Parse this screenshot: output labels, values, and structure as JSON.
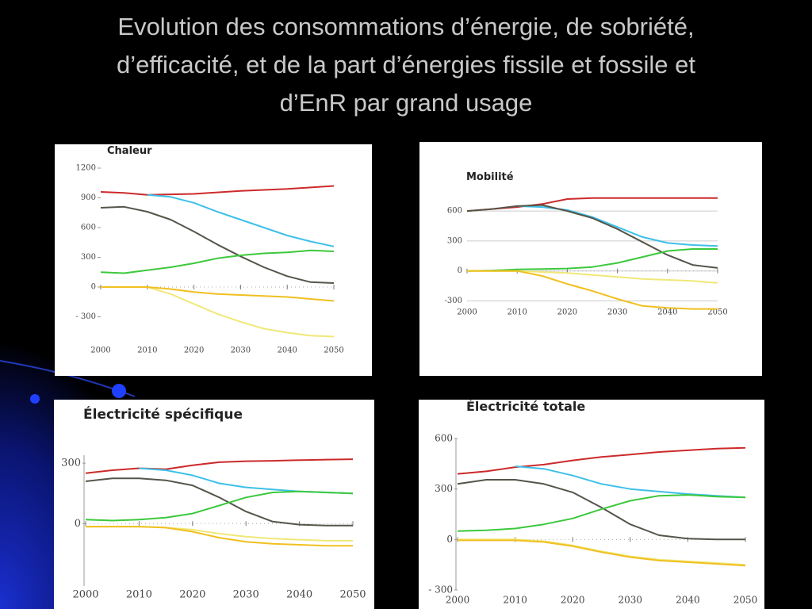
{
  "title": "Evolution des consommations d’énergie, de sobriété, d’efficacité, et de la part d’énergies fissile et fossile et d’EnR par grand usage",
  "chart_data": [
    {
      "type": "line",
      "title": "Chaleur",
      "x": [
        2000,
        2005,
        2010,
        2015,
        2020,
        2025,
        2030,
        2035,
        2040,
        2045,
        2050
      ],
      "xlim": [
        2000,
        2050
      ],
      "xticks": [
        2000,
        2010,
        2020,
        2030,
        2040,
        2050
      ],
      "ylim": [
        -560,
        1200
      ],
      "yticks": [
        1200,
        900,
        600,
        300,
        0,
        {
          "value": -300,
          "label": "- 300"
        }
      ],
      "grid": false,
      "series": [
        {
          "color": "#cc2a2a",
          "values": [
            960,
            950,
            930,
            935,
            940,
            955,
            970,
            980,
            990,
            1005,
            1020
          ]
        },
        {
          "color": "#3ec0e8",
          "values": [
            null,
            null,
            930,
            910,
            850,
            760,
            680,
            600,
            520,
            460,
            410
          ]
        },
        {
          "color": "#55554a",
          "values": [
            800,
            810,
            760,
            680,
            560,
            430,
            310,
            200,
            110,
            50,
            40
          ]
        },
        {
          "color": "#3cc83c",
          "values": [
            150,
            140,
            170,
            200,
            240,
            290,
            320,
            340,
            350,
            370,
            360
          ]
        },
        {
          "color": "#f0e878",
          "values": [
            0,
            0,
            0,
            -70,
            -170,
            -270,
            -350,
            -420,
            -460,
            -490,
            -500
          ]
        },
        {
          "color": "#f0c020",
          "values": [
            0,
            0,
            0,
            -20,
            -50,
            -70,
            -80,
            -90,
            -100,
            -120,
            -140
          ]
        }
      ]
    },
    {
      "type": "line",
      "title": "Mobilité",
      "x": [
        2000,
        2005,
        2010,
        2015,
        2020,
        2025,
        2030,
        2035,
        2040,
        2045,
        2050
      ],
      "xlim": [
        2000,
        2050
      ],
      "xticks": [
        2000,
        2010,
        2020,
        2030,
        2040,
        2050
      ],
      "ylim": [
        -320,
        760
      ],
      "yticks": [
        600,
        300,
        0,
        -300
      ],
      "grid": true,
      "series": [
        {
          "color": "#cc2a2a",
          "values": [
            600,
            620,
            640,
            670,
            720,
            730,
            730,
            730,
            730,
            730,
            730
          ]
        },
        {
          "color": "#3ec0e8",
          "values": [
            null,
            null,
            650,
            640,
            610,
            540,
            440,
            340,
            280,
            260,
            250
          ]
        },
        {
          "color": "#55554a",
          "values": [
            600,
            620,
            650,
            660,
            600,
            530,
            420,
            290,
            160,
            60,
            30
          ]
        },
        {
          "color": "#3cc83c",
          "values": [
            0,
            5,
            15,
            20,
            25,
            40,
            80,
            140,
            200,
            220,
            220
          ]
        },
        {
          "color": "#f0e878",
          "values": [
            0,
            0,
            0,
            -10,
            -20,
            -40,
            -60,
            -80,
            -90,
            -100,
            -120
          ]
        },
        {
          "color": "#f0c020",
          "values": [
            0,
            0,
            0,
            -50,
            -130,
            -200,
            -280,
            -350,
            -370,
            -380,
            -380
          ]
        }
      ]
    },
    {
      "type": "line",
      "title": "Électricité spécifique",
      "x": [
        2000,
        2005,
        2010,
        2015,
        2020,
        2025,
        2030,
        2035,
        2040,
        2045,
        2050
      ],
      "xlim": [
        2000,
        2050
      ],
      "xticks": [
        2000,
        2010,
        2020,
        2030,
        2040,
        2050
      ],
      "ylim": [
        -310,
        340
      ],
      "yticks": [
        300,
        0
      ],
      "grid": false,
      "series": [
        {
          "color": "#cc2a2a",
          "values": [
            250,
            265,
            275,
            270,
            290,
            305,
            310,
            312,
            315,
            318,
            320
          ]
        },
        {
          "color": "#3ec0e8",
          "values": [
            null,
            null,
            275,
            265,
            240,
            200,
            180,
            170,
            160,
            155,
            150
          ]
        },
        {
          "color": "#55554a",
          "values": [
            210,
            225,
            225,
            215,
            190,
            130,
            60,
            10,
            -5,
            -10,
            -10
          ]
        },
        {
          "color": "#3cc83c",
          "values": [
            20,
            15,
            20,
            30,
            50,
            90,
            130,
            155,
            160,
            155,
            150
          ]
        },
        {
          "color": "#f0e878",
          "values": [
            -15,
            -15,
            -15,
            -20,
            -30,
            -50,
            -65,
            -75,
            -80,
            -85,
            -85
          ]
        },
        {
          "color": "#f0c020",
          "values": [
            -15,
            -15,
            -15,
            -20,
            -40,
            -70,
            -90,
            -100,
            -105,
            -110,
            -110
          ]
        }
      ]
    },
    {
      "type": "line",
      "title": "Électricité totale",
      "x": [
        2000,
        2005,
        2010,
        2015,
        2020,
        2025,
        2030,
        2035,
        2040,
        2045,
        2050
      ],
      "xlim": [
        2000,
        2050
      ],
      "xticks": [
        2000,
        2010,
        2020,
        2030,
        2040,
        2050
      ],
      "ylim": [
        -300,
        600
      ],
      "yticks": [
        600,
        300,
        0,
        {
          "value": -300,
          "label": "- 300"
        }
      ],
      "grid": false,
      "series": [
        {
          "color": "#cc2a2a",
          "values": [
            390,
            405,
            430,
            445,
            470,
            490,
            505,
            520,
            530,
            540,
            545
          ]
        },
        {
          "color": "#3ec0e8",
          "values": [
            null,
            null,
            435,
            420,
            380,
            330,
            300,
            285,
            270,
            260,
            250
          ]
        },
        {
          "color": "#55554a",
          "values": [
            330,
            355,
            355,
            330,
            280,
            190,
            90,
            25,
            5,
            0,
            0
          ]
        },
        {
          "color": "#3cc83c",
          "values": [
            50,
            55,
            65,
            90,
            125,
            180,
            230,
            260,
            265,
            255,
            250
          ]
        },
        {
          "color": "#f0e878",
          "values": [
            0,
            0,
            0,
            -10,
            -35,
            -70,
            -100,
            -120,
            -130,
            -140,
            -150
          ]
        },
        {
          "color": "#f0c020",
          "values": [
            -5,
            -5,
            -5,
            -15,
            -40,
            -75,
            -105,
            -125,
            -135,
            -145,
            -155
          ]
        }
      ]
    }
  ]
}
